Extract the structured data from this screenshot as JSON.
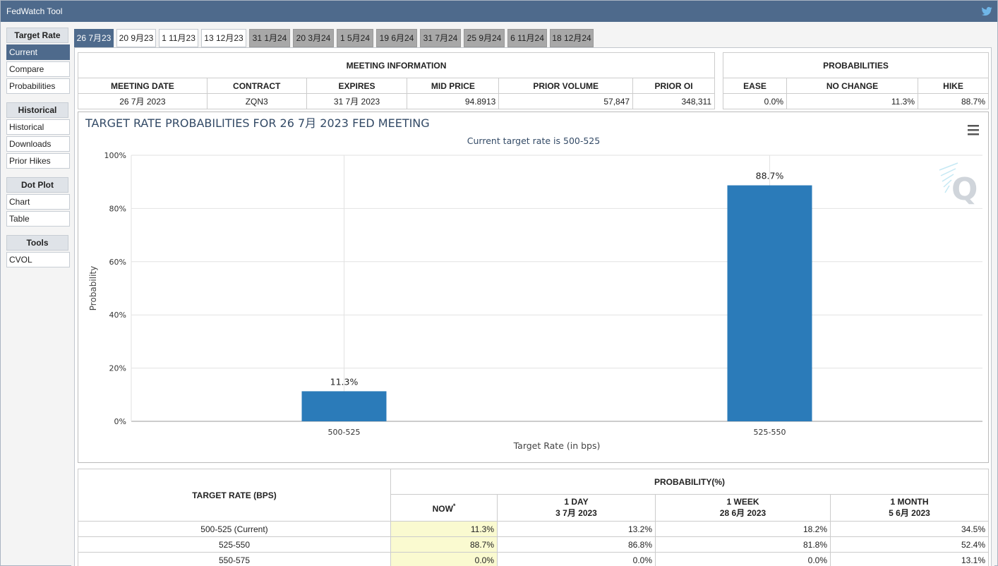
{
  "header": {
    "title": "FedWatch Tool"
  },
  "sidebar": {
    "sections": [
      {
        "title": "Target Rate",
        "items": [
          {
            "label": "Current",
            "active": true
          },
          {
            "label": "Compare",
            "active": false
          },
          {
            "label": "Probabilities",
            "active": false
          }
        ]
      },
      {
        "title": "Historical",
        "items": [
          {
            "label": "Historical",
            "active": false
          },
          {
            "label": "Downloads",
            "active": false
          },
          {
            "label": "Prior Hikes",
            "active": false
          }
        ]
      },
      {
        "title": "Dot Plot",
        "items": [
          {
            "label": "Chart",
            "active": false
          },
          {
            "label": "Table",
            "active": false
          }
        ]
      },
      {
        "title": "Tools",
        "items": [
          {
            "label": "CVOL",
            "active": false
          }
        ]
      }
    ]
  },
  "tabs": [
    {
      "label": "26 7月23",
      "state": "active"
    },
    {
      "label": "20 9月23",
      "state": "normal"
    },
    {
      "label": "1 11月23",
      "state": "normal"
    },
    {
      "label": "13 12月23",
      "state": "normal"
    },
    {
      "label": "31 1月24",
      "state": "gray"
    },
    {
      "label": "20 3月24",
      "state": "gray"
    },
    {
      "label": "1 5月24",
      "state": "gray"
    },
    {
      "label": "19 6月24",
      "state": "gray"
    },
    {
      "label": "31 7月24",
      "state": "gray"
    },
    {
      "label": "25 9月24",
      "state": "gray"
    },
    {
      "label": "6 11月24",
      "state": "gray"
    },
    {
      "label": "18 12月24",
      "state": "gray"
    }
  ],
  "meeting_info": {
    "title": "MEETING INFORMATION",
    "headers": [
      "MEETING DATE",
      "CONTRACT",
      "EXPIRES",
      "MID PRICE",
      "PRIOR VOLUME",
      "PRIOR OI"
    ],
    "row": [
      "26 7月 2023",
      "ZQN3",
      "31 7月 2023",
      "94.8913",
      "57,847",
      "348,311"
    ]
  },
  "probabilities": {
    "title": "PROBABILITIES",
    "headers": [
      "EASE",
      "NO CHANGE",
      "HIKE"
    ],
    "row": [
      "0.0%",
      "11.3%",
      "88.7%"
    ]
  },
  "chart_data": {
    "type": "bar",
    "title": "TARGET RATE PROBABILITIES FOR 26 7月 2023 FED MEETING",
    "subtitle": "Current target rate is 500-525",
    "xlabel": "Target Rate (in bps)",
    "ylabel": "Probability",
    "categories": [
      "500-525",
      "525-550"
    ],
    "values": [
      11.3,
      88.7
    ],
    "data_labels": [
      "11.3%",
      "88.7%"
    ],
    "ylim": [
      0,
      100
    ],
    "yticks": [
      "0%",
      "20%",
      "40%",
      "60%",
      "80%",
      "100%"
    ],
    "grid": true,
    "bar_color": "#2b7bb9"
  },
  "bottom_table": {
    "col_target": "TARGET RATE (BPS)",
    "col_prob": "PROBABILITY(%)",
    "sub_headers": [
      {
        "line1": "NOW",
        "line2": "",
        "sup": "*"
      },
      {
        "line1": "1 DAY",
        "line2": "3 7月 2023",
        "sup": ""
      },
      {
        "line1": "1 WEEK",
        "line2": "28 6月 2023",
        "sup": ""
      },
      {
        "line1": "1 MONTH",
        "line2": "5 6月 2023",
        "sup": ""
      }
    ],
    "rows": [
      {
        "rate": "500-525 (Current)",
        "values": [
          "11.3%",
          "13.2%",
          "18.2%",
          "34.5%"
        ]
      },
      {
        "rate": "525-550",
        "values": [
          "88.7%",
          "86.8%",
          "81.8%",
          "52.4%"
        ]
      },
      {
        "rate": "550-575",
        "values": [
          "0.0%",
          "0.0%",
          "0.0%",
          "13.1%"
        ]
      }
    ]
  }
}
